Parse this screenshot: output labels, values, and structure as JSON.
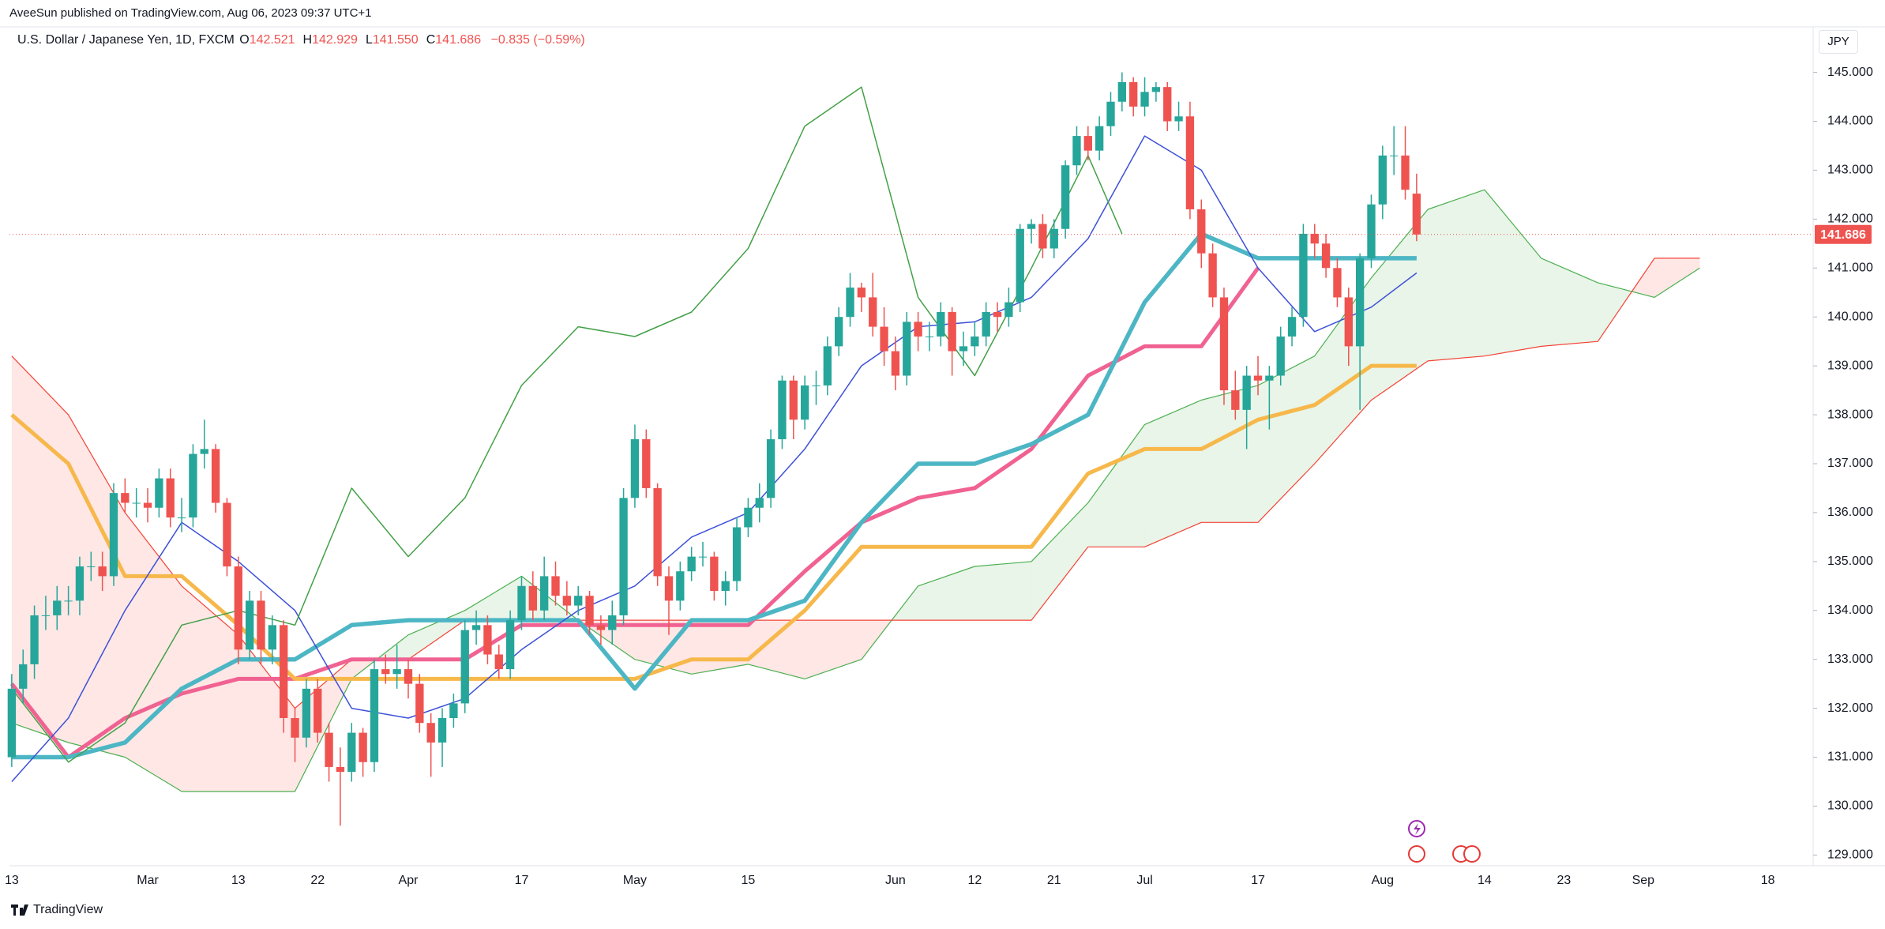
{
  "header": {
    "published": "AveeSun published on TradingView.com, Aug 06, 2023 09:37 UTC+1",
    "ohlc": [
      {
        "key": "O",
        "value": "142.521"
      },
      {
        "key": "H",
        "value": "142.929"
      },
      {
        "key": "L",
        "value": "141.550"
      },
      {
        "key": "C",
        "value": "141.686"
      }
    ],
    "change": "−0.835 (−0.59%)",
    "currency": "JPY"
  },
  "footer": {
    "brand": "TradingView"
  },
  "chart_data": {
    "type": "candlestick",
    "title": "U.S. Dollar / Japanese Yen, 1D, FXCM",
    "up_color": "#26a69a",
    "down_color": "#ef5350",
    "grid": true,
    "xlim": [
      -0.2,
      159
    ],
    "xticks": [
      {
        "value": 0,
        "label": "13"
      },
      {
        "value": 12,
        "label": "Mar"
      },
      {
        "value": 20,
        "label": "13"
      },
      {
        "value": 27,
        "label": "22"
      },
      {
        "value": 35,
        "label": "Apr"
      },
      {
        "value": 45,
        "label": "17"
      },
      {
        "value": 55,
        "label": "May"
      },
      {
        "value": 65,
        "label": "15"
      },
      {
        "value": 78,
        "label": "Jun"
      },
      {
        "value": 85,
        "label": "12"
      },
      {
        "value": 92,
        "label": "21"
      },
      {
        "value": 100,
        "label": "Jul"
      },
      {
        "value": 110,
        "label": "17"
      },
      {
        "value": 121,
        "label": "Aug"
      },
      {
        "value": 130,
        "label": "14"
      },
      {
        "value": 137,
        "label": "23"
      },
      {
        "value": 144,
        "label": "Sep"
      },
      {
        "value": 155,
        "label": "18"
      }
    ],
    "ylim": [
      128.78,
      145.93
    ],
    "yticks": [
      {
        "value": 129,
        "label": "129.000"
      },
      {
        "value": 130,
        "label": "130.000"
      },
      {
        "value": 131,
        "label": "131.000"
      },
      {
        "value": 132,
        "label": "132.000"
      },
      {
        "value": 133,
        "label": "133.000"
      },
      {
        "value": 134,
        "label": "134.000"
      },
      {
        "value": 135,
        "label": "135.000"
      },
      {
        "value": 136,
        "label": "136.000"
      },
      {
        "value": 137,
        "label": "137.000"
      },
      {
        "value": 138,
        "label": "138.000"
      },
      {
        "value": 139,
        "label": "139.000"
      },
      {
        "value": 140,
        "label": "140.000"
      },
      {
        "value": 141,
        "label": "141.000"
      },
      {
        "value": 142,
        "label": "142.000"
      },
      {
        "value": 143,
        "label": "143.000"
      },
      {
        "value": 144,
        "label": "144.000"
      },
      {
        "value": 145,
        "label": "145.000"
      }
    ],
    "last_price": {
      "value": 141.686,
      "label": "141.686"
    },
    "candles": [
      [
        131.0,
        132.7,
        130.8,
        132.4
      ],
      [
        132.4,
        133.2,
        132.1,
        132.9
      ],
      [
        132.9,
        134.1,
        132.6,
        133.9
      ],
      [
        133.9,
        134.3,
        133.6,
        133.9
      ],
      [
        133.9,
        134.5,
        133.6,
        134.2
      ],
      [
        134.2,
        134.5,
        133.9,
        134.2
      ],
      [
        134.2,
        135.1,
        133.9,
        134.9
      ],
      [
        134.9,
        135.2,
        134.6,
        134.9
      ],
      [
        134.9,
        135.2,
        134.4,
        134.7
      ],
      [
        134.7,
        136.6,
        134.5,
        136.4
      ],
      [
        136.4,
        136.7,
        136.0,
        136.2
      ],
      [
        136.2,
        136.5,
        135.9,
        136.2
      ],
      [
        136.2,
        136.5,
        135.8,
        136.1
      ],
      [
        136.1,
        136.9,
        135.9,
        136.7
      ],
      [
        136.7,
        136.9,
        135.7,
        135.9
      ],
      [
        135.9,
        136.3,
        135.6,
        135.9
      ],
      [
        135.9,
        137.4,
        135.7,
        137.2
      ],
      [
        137.2,
        137.9,
        136.9,
        137.3
      ],
      [
        137.3,
        137.4,
        136.0,
        136.2
      ],
      [
        136.2,
        136.3,
        134.7,
        134.9
      ],
      [
        134.9,
        135.1,
        132.9,
        133.2
      ],
      [
        133.2,
        134.4,
        133.0,
        134.2
      ],
      [
        134.2,
        134.4,
        132.9,
        133.2
      ],
      [
        133.2,
        133.9,
        132.9,
        133.7
      ],
      [
        133.7,
        133.8,
        131.5,
        131.8
      ],
      [
        131.8,
        132.0,
        130.9,
        131.4
      ],
      [
        131.4,
        132.6,
        131.2,
        132.4
      ],
      [
        132.4,
        132.6,
        131.3,
        131.5
      ],
      [
        131.5,
        131.7,
        130.5,
        130.8
      ],
      [
        130.8,
        131.2,
        129.6,
        130.7
      ],
      [
        130.7,
        131.7,
        130.5,
        131.5
      ],
      [
        131.5,
        131.6,
        130.6,
        130.9
      ],
      [
        130.9,
        133.0,
        130.7,
        132.8
      ],
      [
        132.8,
        133.1,
        132.5,
        132.7
      ],
      [
        132.7,
        133.3,
        132.4,
        132.8
      ],
      [
        132.8,
        133.0,
        132.2,
        132.5
      ],
      [
        132.5,
        132.7,
        131.5,
        131.7
      ],
      [
        131.7,
        131.9,
        130.6,
        131.3
      ],
      [
        131.3,
        132.0,
        130.8,
        131.8
      ],
      [
        131.8,
        132.3,
        131.6,
        132.1
      ],
      [
        132.1,
        133.8,
        131.9,
        133.6
      ],
      [
        133.6,
        134.0,
        133.3,
        133.7
      ],
      [
        133.7,
        133.9,
        132.9,
        133.1
      ],
      [
        133.1,
        133.3,
        132.6,
        132.8
      ],
      [
        132.8,
        134.0,
        132.6,
        133.8
      ],
      [
        133.8,
        134.7,
        133.6,
        134.5
      ],
      [
        134.5,
        134.8,
        133.8,
        134.0
      ],
      [
        134.0,
        135.1,
        133.8,
        134.7
      ],
      [
        134.7,
        135.0,
        134.1,
        134.3
      ],
      [
        134.3,
        134.6,
        133.9,
        134.1
      ],
      [
        134.1,
        134.5,
        133.9,
        134.3
      ],
      [
        134.3,
        134.4,
        133.5,
        133.7
      ],
      [
        133.7,
        133.9,
        133.3,
        133.6
      ],
      [
        133.6,
        134.2,
        133.3,
        133.9
      ],
      [
        133.9,
        136.5,
        133.7,
        136.3
      ],
      [
        136.3,
        137.8,
        136.1,
        137.5
      ],
      [
        137.5,
        137.7,
        136.3,
        136.5
      ],
      [
        136.5,
        136.6,
        134.5,
        134.7
      ],
      [
        134.7,
        134.9,
        133.5,
        134.2
      ],
      [
        134.2,
        135.0,
        134.0,
        134.8
      ],
      [
        134.8,
        135.3,
        134.6,
        135.1
      ],
      [
        135.1,
        135.4,
        134.9,
        135.1
      ],
      [
        135.1,
        135.2,
        134.2,
        134.4
      ],
      [
        134.4,
        134.8,
        134.1,
        134.6
      ],
      [
        134.6,
        135.9,
        134.4,
        135.7
      ],
      [
        135.7,
        136.3,
        135.5,
        136.1
      ],
      [
        136.1,
        136.6,
        135.8,
        136.3
      ],
      [
        136.3,
        137.7,
        136.1,
        137.5
      ],
      [
        137.5,
        138.8,
        137.3,
        138.7
      ],
      [
        138.7,
        138.8,
        137.5,
        137.9
      ],
      [
        137.9,
        138.8,
        137.7,
        138.6
      ],
      [
        138.6,
        138.9,
        138.2,
        138.6
      ],
      [
        138.6,
        139.6,
        138.4,
        139.4
      ],
      [
        139.4,
        140.2,
        139.2,
        140.0
      ],
      [
        140.0,
        140.9,
        139.8,
        140.6
      ],
      [
        140.6,
        140.7,
        140.1,
        140.4
      ],
      [
        140.4,
        140.9,
        139.6,
        139.8
      ],
      [
        139.8,
        140.2,
        139.0,
        139.3
      ],
      [
        139.3,
        139.6,
        138.5,
        138.8
      ],
      [
        138.8,
        140.1,
        138.6,
        139.9
      ],
      [
        139.9,
        140.1,
        139.3,
        139.6
      ],
      [
        139.6,
        139.9,
        139.3,
        139.6
      ],
      [
        139.6,
        140.3,
        139.4,
        140.1
      ],
      [
        140.1,
        140.2,
        138.8,
        139.3
      ],
      [
        139.3,
        139.7,
        139.0,
        139.4
      ],
      [
        139.4,
        139.9,
        139.2,
        139.6
      ],
      [
        139.6,
        140.3,
        139.4,
        140.1
      ],
      [
        140.1,
        140.3,
        139.7,
        140.0
      ],
      [
        140.0,
        140.6,
        139.8,
        140.3
      ],
      [
        140.3,
        141.9,
        140.1,
        141.8
      ],
      [
        141.8,
        142.0,
        141.5,
        141.9
      ],
      [
        141.9,
        142.1,
        141.2,
        141.4
      ],
      [
        141.4,
        142.0,
        141.2,
        141.8
      ],
      [
        141.8,
        143.2,
        141.6,
        143.1
      ],
      [
        143.1,
        143.9,
        142.9,
        143.7
      ],
      [
        143.7,
        143.9,
        143.2,
        143.4
      ],
      [
        143.4,
        144.1,
        143.2,
        143.9
      ],
      [
        143.9,
        144.6,
        143.7,
        144.4
      ],
      [
        144.4,
        145.0,
        144.2,
        144.8
      ],
      [
        144.8,
        144.9,
        144.1,
        144.3
      ],
      [
        144.3,
        144.9,
        144.1,
        144.6
      ],
      [
        144.6,
        144.8,
        144.4,
        144.7
      ],
      [
        144.7,
        144.8,
        143.8,
        144.0
      ],
      [
        144.0,
        144.4,
        143.8,
        144.1
      ],
      [
        144.1,
        144.4,
        142.0,
        142.2
      ],
      [
        142.2,
        142.4,
        141.0,
        141.3
      ],
      [
        141.3,
        141.5,
        140.2,
        140.4
      ],
      [
        140.4,
        140.6,
        138.2,
        138.5
      ],
      [
        138.5,
        138.9,
        137.9,
        138.1
      ],
      [
        138.1,
        139.0,
        137.3,
        138.8
      ],
      [
        138.8,
        139.2,
        138.4,
        138.7
      ],
      [
        138.7,
        139.0,
        137.7,
        138.8
      ],
      [
        138.8,
        139.8,
        138.6,
        139.6
      ],
      [
        139.6,
        140.2,
        139.4,
        140.0
      ],
      [
        140.0,
        141.9,
        139.8,
        141.7
      ],
      [
        141.7,
        141.9,
        141.2,
        141.5
      ],
      [
        141.5,
        141.7,
        140.8,
        141.0
      ],
      [
        141.0,
        141.2,
        140.2,
        140.4
      ],
      [
        140.4,
        140.6,
        139.0,
        139.4
      ],
      [
        139.4,
        141.3,
        138.1,
        141.2
      ],
      [
        141.2,
        142.5,
        141.0,
        142.3
      ],
      [
        142.3,
        143.5,
        142.0,
        143.3
      ],
      [
        143.3,
        143.9,
        142.9,
        143.3
      ],
      [
        143.3,
        143.9,
        142.4,
        142.6
      ],
      [
        142.521,
        142.929,
        141.55,
        141.686
      ]
    ],
    "cloud": {
      "x": [
        0,
        5,
        10,
        15,
        20,
        25,
        30,
        35,
        40,
        45,
        50,
        55,
        60,
        65,
        70,
        75,
        80,
        85,
        90,
        95,
        100,
        105,
        110,
        115,
        120,
        125,
        130,
        135,
        140,
        145,
        149
      ],
      "span_a": [
        131.7,
        131.3,
        131.0,
        130.3,
        130.3,
        130.3,
        132.6,
        133.5,
        134.0,
        134.7,
        133.8,
        133.0,
        132.7,
        132.9,
        132.6,
        133.0,
        134.5,
        134.9,
        135.0,
        136.2,
        137.8,
        138.3,
        138.6,
        139.2,
        140.8,
        142.2,
        142.6,
        141.2,
        140.7,
        140.4,
        141.0
      ],
      "span_b": [
        139.2,
        138.0,
        136.0,
        134.5,
        133.5,
        132.0,
        133.0,
        133.0,
        133.8,
        133.8,
        133.8,
        133.8,
        133.8,
        133.8,
        133.8,
        133.8,
        133.8,
        133.8,
        133.8,
        135.3,
        135.3,
        135.8,
        135.8,
        137.0,
        138.3,
        139.1,
        139.2,
        139.4,
        139.5,
        141.2,
        141.2
      ],
      "a_color": "#4caf50",
      "b_color": "#f44336",
      "up_fill": "rgba(76,175,80,0.13)",
      "down_fill": "rgba(244,67,54,0.13)"
    },
    "series": [
      {
        "color": "#f06292",
        "width": 5,
        "x": [
          0,
          5,
          10,
          15,
          20,
          25,
          30,
          35,
          40,
          45,
          50,
          55,
          60,
          65,
          70,
          75,
          80,
          85,
          90,
          95,
          100,
          105,
          110
        ],
        "values": [
          132.5,
          131.0,
          131.8,
          132.3,
          132.6,
          132.6,
          133.0,
          133.0,
          133.0,
          133.7,
          133.7,
          133.7,
          133.7,
          133.7,
          134.8,
          135.8,
          136.3,
          136.5,
          137.3,
          138.8,
          139.4,
          139.4,
          141.0
        ]
      },
      {
        "color": "#f7b84b",
        "width": 5,
        "x": [
          0,
          5,
          10,
          15,
          20,
          25,
          30,
          35,
          40,
          45,
          50,
          55,
          60,
          65,
          70,
          75,
          80,
          85,
          90,
          95,
          100,
          105,
          110,
          115,
          120,
          124
        ],
        "values": [
          138.0,
          137.0,
          134.7,
          134.7,
          133.7,
          132.6,
          132.6,
          132.6,
          132.6,
          132.6,
          132.6,
          132.6,
          133.0,
          133.0,
          134.0,
          135.3,
          135.3,
          135.3,
          135.3,
          136.8,
          137.3,
          137.3,
          137.9,
          138.2,
          139.0,
          139.0
        ]
      },
      {
        "color": "#4db6c4",
        "width": 5.5,
        "x": [
          0,
          5,
          10,
          15,
          20,
          25,
          30,
          35,
          40,
          45,
          50,
          55,
          60,
          65,
          70,
          75,
          80,
          85,
          90,
          95,
          100,
          105,
          110,
          115,
          120,
          124
        ],
        "values": [
          131.0,
          131.0,
          131.3,
          132.4,
          133.0,
          133.0,
          133.7,
          133.8,
          133.8,
          133.8,
          133.8,
          132.4,
          133.8,
          133.8,
          134.2,
          135.8,
          137.0,
          137.0,
          137.4,
          138.0,
          140.3,
          141.7,
          141.2,
          141.2,
          141.2,
          141.2
        ]
      },
      {
        "color": "#3d50d8",
        "width": 1.5,
        "x": [
          0,
          5,
          10,
          15,
          20,
          25,
          30,
          35,
          40,
          45,
          50,
          55,
          60,
          65,
          70,
          75,
          80,
          85,
          90,
          95,
          100,
          105,
          110,
          115,
          120,
          124
        ],
        "values": [
          130.5,
          131.8,
          134.0,
          135.8,
          135.0,
          134.0,
          132.0,
          131.8,
          132.2,
          133.2,
          134.0,
          134.5,
          135.5,
          136.0,
          137.3,
          139.0,
          139.8,
          139.9,
          140.4,
          141.6,
          143.7,
          143.0,
          141.0,
          139.7,
          140.2,
          140.9
        ]
      },
      {
        "color": "#43a047",
        "width": 1.5,
        "x": [
          0,
          5,
          10,
          15,
          20,
          25,
          30,
          35,
          40,
          45,
          50,
          55,
          60,
          65,
          70,
          75,
          80,
          85,
          90,
          95,
          98
        ],
        "values": [
          132.4,
          130.9,
          131.7,
          133.7,
          134.0,
          133.7,
          136.5,
          135.1,
          136.3,
          138.6,
          139.8,
          139.6,
          140.1,
          141.4,
          143.9,
          144.7,
          140.4,
          138.8,
          141.0,
          143.3,
          141.7
        ]
      }
    ]
  }
}
